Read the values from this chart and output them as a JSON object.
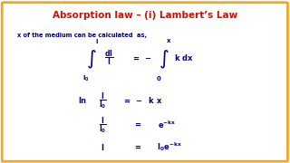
{
  "title": "Absorption law – (i) Lambert’s Law",
  "subtitle": "x of the medium can be calculated  as,",
  "bg_color": "#ffffff",
  "border_color": "#f5a623",
  "title_color": "#cc1100",
  "body_color": "#00008b",
  "title_fontsize": 7.5,
  "subtitle_fontsize": 4.8,
  "eq_fontsize": 5.5,
  "figsize": [
    3.2,
    1.8
  ],
  "dpi": 100
}
